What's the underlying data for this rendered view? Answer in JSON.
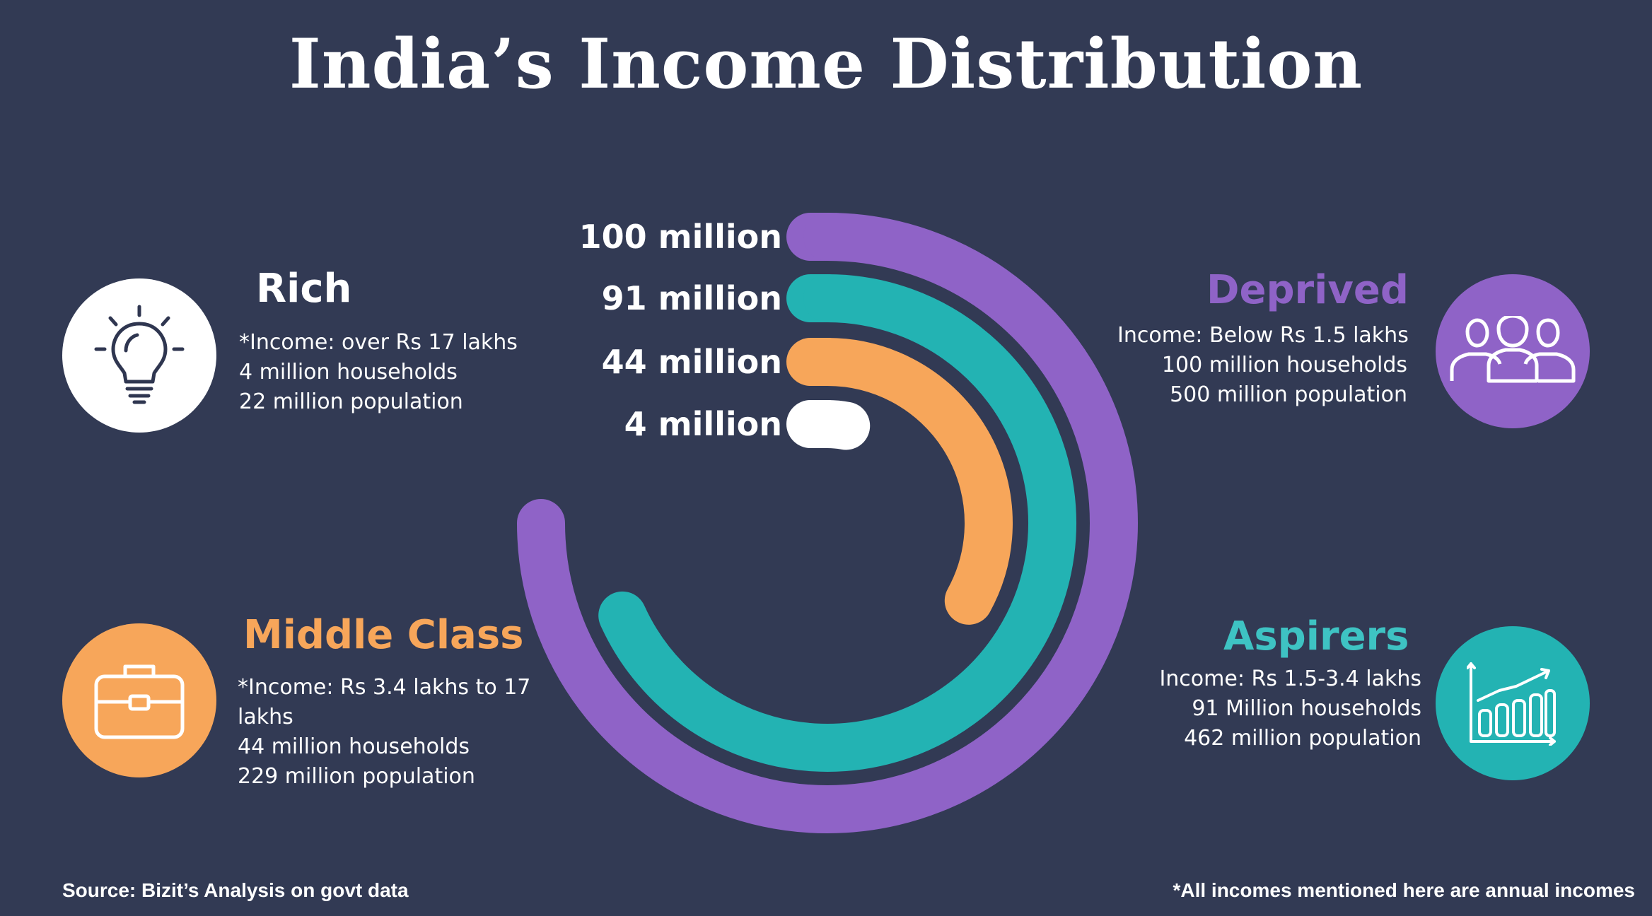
{
  "title": "India’s Income Distribution",
  "colors": {
    "background": "#323a54",
    "rich": "#ffffff",
    "middle_class": "#f7a65a",
    "aspirers": "#23b3b3",
    "deprived": "#8f63c7"
  },
  "chart_data": {
    "type": "radial-bar",
    "unit": "households",
    "categories": [
      "Deprived",
      "Aspirers",
      "Middle Class",
      "Rich"
    ],
    "values": [
      100,
      91,
      44,
      4
    ],
    "value_labels": [
      "100 million",
      "91 million",
      "44 million",
      "4 million"
    ],
    "colors": [
      "#8f63c7",
      "#23b3b3",
      "#f7a65a",
      "#ffffff"
    ],
    "max": 100,
    "full_sweep_degrees": 270
  },
  "rich": {
    "title": "Rich",
    "lines": [
      "*Income: over Rs 17 lakhs",
      "4 million households",
      "22 million population"
    ],
    "icon": "lightbulb-icon"
  },
  "middle_class": {
    "title": "Middle Class",
    "lines": [
      "*Income: Rs 3.4 lakhs to 17",
      "lakhs",
      "44 million households",
      "229 million population"
    ],
    "icon": "briefcase-icon"
  },
  "deprived": {
    "title": "Deprived",
    "lines": [
      "Income: Below Rs 1.5 lakhs",
      "100 million households",
      "500 million population"
    ],
    "icon": "people-icon"
  },
  "aspirers": {
    "title": "Aspirers",
    "lines": [
      "Income: Rs 1.5-3.4 lakhs",
      "91 Million households",
      "462 million population"
    ],
    "icon": "growth-chart-icon"
  },
  "footer": {
    "source": "Source: Bizit’s Analysis on govt data",
    "note": "*All incomes mentioned here are annual incomes"
  }
}
